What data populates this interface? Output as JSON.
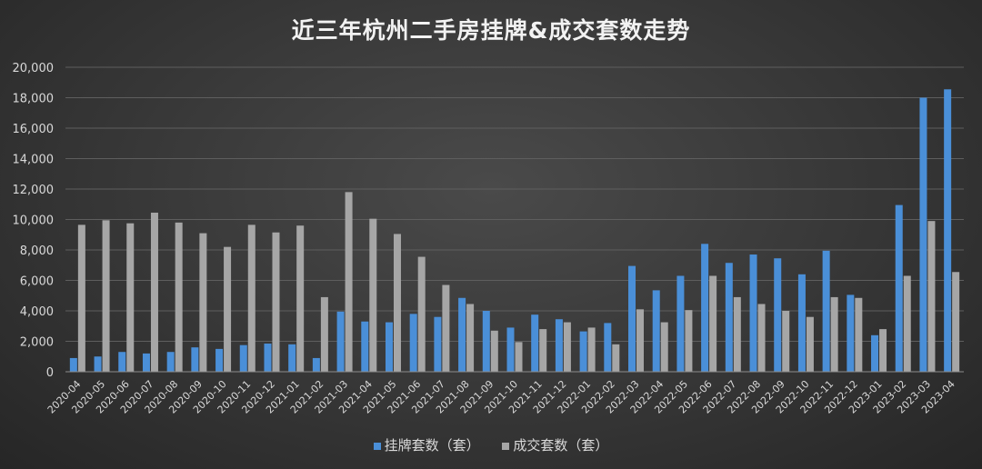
{
  "chart_data": {
    "type": "bar",
    "title": "近三年杭州二手房挂牌&成交套数走势",
    "xlabel": "",
    "ylabel": "",
    "ylim": [
      0,
      20000
    ],
    "yticks": [
      "0",
      "2,000",
      "4,000",
      "6,000",
      "8,000",
      "10,000",
      "12,000",
      "14,000",
      "16,000",
      "18,000",
      "20,000"
    ],
    "grid": true,
    "legend_position": "bottom",
    "categories": [
      "2020-04",
      "2020-05",
      "2020-06",
      "2020-07",
      "2020-08",
      "2020-09",
      "2020-10",
      "2020-11",
      "2020-12",
      "2021-01",
      "2021-02",
      "2021-03",
      "2021-04",
      "2021-05",
      "2021-06",
      "2021-07",
      "2021-08",
      "2021-09",
      "2021-10",
      "2021-11",
      "2021-12",
      "2022-01",
      "2022-02",
      "2022-03",
      "2022-04",
      "2022-05",
      "2022-06",
      "2022-07",
      "2022-08",
      "2022-09",
      "2022-10",
      "2022-11",
      "2022-12",
      "2023-01",
      "2023-02",
      "2023-03",
      "2023-04"
    ],
    "series": [
      {
        "name": "挂牌套数（套）",
        "color": "#4a8fd8",
        "values": [
          900,
          1000,
          1300,
          1200,
          1300,
          1600,
          1500,
          1750,
          1850,
          1800,
          900,
          3950,
          3300,
          3250,
          3800,
          3600,
          4850,
          4000,
          2900,
          3750,
          3450,
          2650,
          3200,
          6950,
          5350,
          6300,
          8400,
          7150,
          7700,
          7450,
          6400,
          7950,
          5050,
          2400,
          10950,
          18000,
          18550
        ]
      },
      {
        "name": "成交套数（套）",
        "color": "#a6a6a6",
        "values": [
          9650,
          9950,
          9750,
          10450,
          9800,
          9100,
          8200,
          9650,
          9150,
          9600,
          4900,
          11800,
          10050,
          9050,
          7550,
          5700,
          4450,
          2700,
          1950,
          2800,
          3250,
          2900,
          1800,
          4100,
          3250,
          4050,
          6300,
          4900,
          4450,
          4000,
          3600,
          4900,
          4850,
          2800,
          6300,
          9900,
          6550
        ]
      }
    ]
  }
}
